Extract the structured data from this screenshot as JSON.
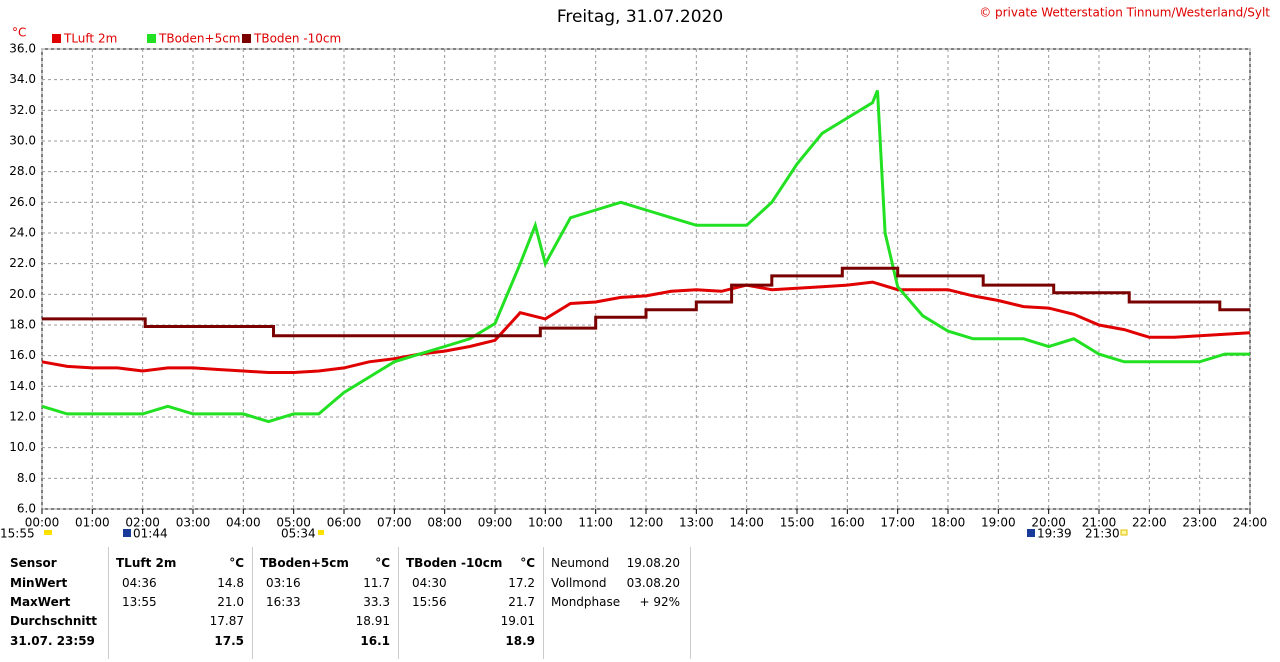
{
  "chart_data": {
    "type": "line",
    "title": "Freitag, 31.07.2020",
    "copyright": "© private Wetterstation Tinnum/Westerland/Sylt",
    "y_unit": "°C",
    "xlim": [
      0,
      24
    ],
    "xticks": [
      {
        "value": 0,
        "label": "00:00"
      },
      {
        "value": 1,
        "label": "01:00"
      },
      {
        "value": 2,
        "label": "02:00"
      },
      {
        "value": 3,
        "label": "03:00"
      },
      {
        "value": 4,
        "label": "04:00"
      },
      {
        "value": 5,
        "label": "05:00"
      },
      {
        "value": 6,
        "label": "06:00"
      },
      {
        "value": 7,
        "label": "07:00"
      },
      {
        "value": 8,
        "label": "08:00"
      },
      {
        "value": 9,
        "label": "09:00"
      },
      {
        "value": 10,
        "label": "10:00"
      },
      {
        "value": 11,
        "label": "11:00"
      },
      {
        "value": 12,
        "label": "12:00"
      },
      {
        "value": 13,
        "label": "13:00"
      },
      {
        "value": 14,
        "label": "14:00"
      },
      {
        "value": 15,
        "label": "15:00"
      },
      {
        "value": 16,
        "label": "16:00"
      },
      {
        "value": 17,
        "label": "17:00"
      },
      {
        "value": 18,
        "label": "18:00"
      },
      {
        "value": 19,
        "label": "19:00"
      },
      {
        "value": 20,
        "label": "20:00"
      },
      {
        "value": 21,
        "label": "21:00"
      },
      {
        "value": 22,
        "label": "22:00"
      },
      {
        "value": 23,
        "label": "23:00"
      },
      {
        "value": 24,
        "label": "24:00"
      }
    ],
    "ylim": [
      6,
      36
    ],
    "yticks": [
      {
        "value": 6,
        "label": "6.0"
      },
      {
        "value": 8,
        "label": "8.0"
      },
      {
        "value": 10,
        "label": "10.0"
      },
      {
        "value": 12,
        "label": "12.0"
      },
      {
        "value": 14,
        "label": "14.0"
      },
      {
        "value": 16,
        "label": "16.0"
      },
      {
        "value": 18,
        "label": "18.0"
      },
      {
        "value": 20,
        "label": "20.0"
      },
      {
        "value": 22,
        "label": "22.0"
      },
      {
        "value": 24,
        "label": "24.0"
      },
      {
        "value": 26,
        "label": "26.0"
      },
      {
        "value": 28,
        "label": "28.0"
      },
      {
        "value": 30,
        "label": "30.0"
      },
      {
        "value": 32,
        "label": "32.0"
      },
      {
        "value": 34,
        "label": "34.0"
      },
      {
        "value": 36,
        "label": "36.0"
      }
    ],
    "grid": true,
    "series": [
      {
        "name": "TLuft 2m",
        "color": "#e00000",
        "x": [
          0,
          0.5,
          1,
          1.5,
          2,
          2.5,
          3,
          3.5,
          4,
          4.5,
          5,
          5.5,
          6,
          6.5,
          7,
          7.5,
          8,
          8.5,
          9,
          9.5,
          10,
          10.5,
          11,
          11.5,
          12,
          12.5,
          13,
          13.5,
          14,
          14.5,
          15,
          15.5,
          16,
          16.5,
          17,
          17.5,
          18,
          18.5,
          19,
          19.5,
          20,
          20.5,
          21,
          21.5,
          22,
          22.5,
          23,
          23.5,
          24
        ],
        "values": [
          15.6,
          15.3,
          15.2,
          15.2,
          15.0,
          15.2,
          15.2,
          15.1,
          15.0,
          14.9,
          14.9,
          15.0,
          15.2,
          15.6,
          15.8,
          16.1,
          16.3,
          16.6,
          17.0,
          18.8,
          18.4,
          19.4,
          19.5,
          19.8,
          19.9,
          20.2,
          20.3,
          20.2,
          20.6,
          20.3,
          20.4,
          20.5,
          20.6,
          20.8,
          20.3,
          20.3,
          20.3,
          19.9,
          19.6,
          19.2,
          19.1,
          18.7,
          18.0,
          17.7,
          17.2,
          17.2,
          17.3,
          17.4,
          17.5
        ]
      },
      {
        "name": "TBoden+5cm",
        "color": "#22e022",
        "x": [
          0,
          0.5,
          1,
          1.5,
          2,
          2.5,
          3,
          3.5,
          4,
          4.5,
          5,
          5.5,
          6,
          6.5,
          7,
          7.5,
          8,
          8.5,
          9,
          9.5,
          9.8,
          10,
          10.5,
          11,
          11.5,
          12,
          12.5,
          13,
          13.5,
          14,
          14.5,
          15,
          15.5,
          16,
          16.5,
          16.6,
          16.75,
          17,
          17.5,
          18,
          18.5,
          19,
          19.5,
          20,
          20.5,
          21,
          21.5,
          22,
          22.5,
          23,
          23.5,
          24
        ],
        "values": [
          12.7,
          12.2,
          12.2,
          12.2,
          12.2,
          12.7,
          12.2,
          12.2,
          12.2,
          11.7,
          12.2,
          12.2,
          13.6,
          14.6,
          15.6,
          16.1,
          16.6,
          17.1,
          18.1,
          22.0,
          24.5,
          22.0,
          25.0,
          25.5,
          26.0,
          25.5,
          25.0,
          24.5,
          24.5,
          24.5,
          26.0,
          28.5,
          30.5,
          31.5,
          32.5,
          33.3,
          24.0,
          20.5,
          18.6,
          17.6,
          17.1,
          17.1,
          17.1,
          16.6,
          17.1,
          16.1,
          15.6,
          15.6,
          15.6,
          15.6,
          16.1,
          16.1
        ]
      },
      {
        "name": "TBoden -10cm",
        "color": "#7a0000",
        "x": [
          0,
          2.05,
          2.05,
          4.6,
          4.6,
          9.9,
          9.9,
          11,
          11,
          12,
          12,
          13,
          13,
          13.7,
          13.7,
          14.5,
          14.5,
          15.9,
          15.9,
          17,
          17,
          18.7,
          18.7,
          20.1,
          20.1,
          21.6,
          21.6,
          23.4,
          23.4,
          24
        ],
        "values": [
          18.4,
          18.4,
          17.9,
          17.9,
          17.3,
          17.3,
          17.8,
          17.8,
          18.5,
          18.5,
          19.0,
          19.0,
          19.5,
          19.5,
          20.6,
          20.6,
          21.2,
          21.2,
          21.7,
          21.7,
          21.2,
          21.2,
          20.6,
          20.6,
          20.1,
          20.1,
          19.5,
          19.5,
          19.0,
          19.0
        ]
      }
    ],
    "annotations": [
      "15:55",
      "01:44",
      "05:34",
      "19:39",
      "21:30"
    ]
  },
  "table": {
    "row_labels": [
      "Sensor",
      "MinWert",
      "MaxWert",
      "Durchschnitt",
      "31.07. 23:59"
    ],
    "sensors": [
      {
        "name": "TLuft 2m",
        "unit": "°C",
        "min_time": "04:36",
        "min": "14.8",
        "max_time": "13:55",
        "max": "21.0",
        "avg": "17.87",
        "current": "17.5"
      },
      {
        "name": "TBoden+5cm",
        "unit": "°C",
        "min_time": "03:16",
        "min": "11.7",
        "max_time": "16:33",
        "max": "33.3",
        "avg": "18.91",
        "current": "16.1"
      },
      {
        "name": "TBoden -10cm",
        "unit": "°C",
        "min_time": "04:30",
        "min": "17.2",
        "max_time": "15:56",
        "max": "21.7",
        "avg": "19.01",
        "current": "18.9"
      }
    ],
    "moon": [
      [
        "Neumond",
        "19.08.20"
      ],
      [
        "Vollmond",
        "03.08.20"
      ],
      [
        "Mondphase",
        "+ 92%"
      ]
    ]
  }
}
